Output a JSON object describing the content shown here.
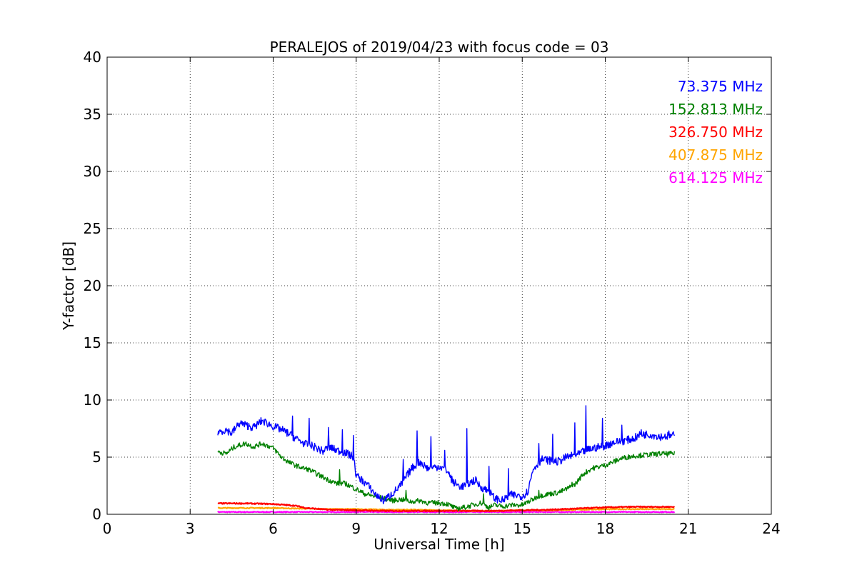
{
  "chart_data": {
    "type": "line",
    "title": "PERALEJOS of 2019/04/23 with focus code = 03",
    "xlabel": "Universal Time [h]",
    "ylabel": "Y-factor [dB]",
    "xlim": [
      0,
      24
    ],
    "ylim": [
      0,
      40
    ],
    "xticks": [
      0,
      3,
      6,
      9,
      12,
      15,
      18,
      21,
      24
    ],
    "yticks": [
      0,
      5,
      10,
      15,
      20,
      25,
      30,
      35,
      40
    ],
    "grid": true,
    "legend_position": "top-right",
    "series": [
      {
        "name": "73.375 MHz",
        "color": "#0000ff",
        "points": [
          [
            4.0,
            7.2
          ],
          [
            4.3,
            7.4
          ],
          [
            4.5,
            7.1
          ],
          [
            4.8,
            8.0
          ],
          [
            5.0,
            7.8
          ],
          [
            5.3,
            7.6
          ],
          [
            5.6,
            8.2
          ],
          [
            6.0,
            7.7
          ],
          [
            6.3,
            7.4
          ],
          [
            6.6,
            7.0
          ],
          [
            6.9,
            6.5
          ],
          [
            7.2,
            6.1
          ],
          [
            7.5,
            5.9
          ],
          [
            7.8,
            5.5
          ],
          [
            8.0,
            5.9
          ],
          [
            8.3,
            5.6
          ],
          [
            8.6,
            5.4
          ],
          [
            8.9,
            5.0
          ],
          [
            9.0,
            3.4
          ],
          [
            9.2,
            3.0
          ],
          [
            9.4,
            2.6
          ],
          [
            9.6,
            2.0
          ],
          [
            9.8,
            1.5
          ],
          [
            10.0,
            1.2
          ],
          [
            10.3,
            1.8
          ],
          [
            10.6,
            2.5
          ],
          [
            11.0,
            4.0
          ],
          [
            11.3,
            4.6
          ],
          [
            11.6,
            4.0
          ],
          [
            12.0,
            4.2
          ],
          [
            12.3,
            3.8
          ],
          [
            12.5,
            2.8
          ],
          [
            12.8,
            2.4
          ],
          [
            13.0,
            2.6
          ],
          [
            13.3,
            3.0
          ],
          [
            13.5,
            2.4
          ],
          [
            13.8,
            2.0
          ],
          [
            14.0,
            1.4
          ],
          [
            14.3,
            1.2
          ],
          [
            14.6,
            1.7
          ],
          [
            15.0,
            1.6
          ],
          [
            15.2,
            2.0
          ],
          [
            15.4,
            4.0
          ],
          [
            15.7,
            4.8
          ],
          [
            16.0,
            4.7
          ],
          [
            16.3,
            4.6
          ],
          [
            16.6,
            5.0
          ],
          [
            17.0,
            5.2
          ],
          [
            17.3,
            5.6
          ],
          [
            17.6,
            5.8
          ],
          [
            18.0,
            6.0
          ],
          [
            18.3,
            6.3
          ],
          [
            18.6,
            6.4
          ],
          [
            19.0,
            6.6
          ],
          [
            19.3,
            7.0
          ],
          [
            19.6,
            7.0
          ],
          [
            20.0,
            6.8
          ],
          [
            20.5,
            6.9
          ]
        ],
        "spikes": [
          [
            6.7,
            8.6
          ],
          [
            7.3,
            8.4
          ],
          [
            8.0,
            7.6
          ],
          [
            8.5,
            7.4
          ],
          [
            8.9,
            6.9
          ],
          [
            10.7,
            4.8
          ],
          [
            11.2,
            7.3
          ],
          [
            11.7,
            6.8
          ],
          [
            12.2,
            5.6
          ],
          [
            13.0,
            7.5
          ],
          [
            13.8,
            4.2
          ],
          [
            14.5,
            4.0
          ],
          [
            15.6,
            6.2
          ],
          [
            16.1,
            7.0
          ],
          [
            16.9,
            8.0
          ],
          [
            17.3,
            9.5
          ],
          [
            17.9,
            8.4
          ],
          [
            18.6,
            7.8
          ],
          [
            19.3,
            7.4
          ],
          [
            20.3,
            7.3
          ]
        ]
      },
      {
        "name": "152.813 MHz",
        "color": "#008000",
        "points": [
          [
            4.0,
            5.5
          ],
          [
            4.3,
            5.3
          ],
          [
            4.6,
            5.9
          ],
          [
            5.0,
            6.2
          ],
          [
            5.3,
            5.9
          ],
          [
            5.6,
            6.2
          ],
          [
            6.0,
            5.8
          ],
          [
            6.3,
            5.0
          ],
          [
            6.6,
            4.5
          ],
          [
            7.0,
            4.1
          ],
          [
            7.3,
            3.9
          ],
          [
            7.6,
            3.5
          ],
          [
            8.0,
            3.0
          ],
          [
            8.3,
            2.7
          ],
          [
            8.6,
            2.7
          ],
          [
            9.0,
            2.2
          ],
          [
            9.3,
            1.8
          ],
          [
            9.6,
            1.6
          ],
          [
            10.0,
            1.4
          ],
          [
            10.3,
            1.2
          ],
          [
            10.6,
            1.3
          ],
          [
            11.0,
            1.1
          ],
          [
            11.3,
            1.2
          ],
          [
            11.6,
            1.0
          ],
          [
            12.0,
            1.0
          ],
          [
            12.3,
            0.9
          ],
          [
            12.6,
            0.5
          ],
          [
            12.9,
            0.6
          ],
          [
            13.2,
            0.8
          ],
          [
            13.5,
            1.0
          ],
          [
            13.8,
            0.6
          ],
          [
            14.0,
            0.8
          ],
          [
            14.3,
            0.7
          ],
          [
            14.6,
            0.8
          ],
          [
            15.0,
            0.8
          ],
          [
            15.3,
            1.2
          ],
          [
            15.6,
            1.6
          ],
          [
            16.0,
            1.8
          ],
          [
            16.3,
            1.9
          ],
          [
            16.6,
            2.2
          ],
          [
            16.9,
            2.6
          ],
          [
            17.2,
            3.5
          ],
          [
            17.5,
            4.0
          ],
          [
            18.0,
            4.3
          ],
          [
            18.3,
            4.6
          ],
          [
            18.6,
            4.9
          ],
          [
            19.0,
            5.1
          ],
          [
            19.5,
            5.2
          ],
          [
            20.0,
            5.3
          ],
          [
            20.5,
            5.3
          ]
        ],
        "spikes": [
          [
            8.4,
            3.9
          ],
          [
            10.8,
            2.1
          ],
          [
            13.6,
            1.8
          ],
          [
            15.6,
            2.1
          ],
          [
            16.8,
            2.8
          ]
        ]
      },
      {
        "name": "326.750 MHz",
        "color": "#ff0000",
        "points": [
          [
            4.0,
            0.95
          ],
          [
            5.0,
            0.95
          ],
          [
            6.0,
            0.9
          ],
          [
            6.8,
            0.75
          ],
          [
            7.2,
            0.55
          ],
          [
            8.0,
            0.4
          ],
          [
            9.0,
            0.35
          ],
          [
            10.0,
            0.3
          ],
          [
            11.0,
            0.3
          ],
          [
            12.0,
            0.3
          ],
          [
            13.0,
            0.3
          ],
          [
            14.0,
            0.3
          ],
          [
            15.0,
            0.35
          ],
          [
            16.0,
            0.4
          ],
          [
            17.0,
            0.5
          ],
          [
            18.0,
            0.6
          ],
          [
            19.0,
            0.65
          ],
          [
            20.0,
            0.65
          ],
          [
            20.5,
            0.65
          ]
        ],
        "spikes": []
      },
      {
        "name": "407.875 MHz",
        "color": "#ffa500",
        "points": [
          [
            4.0,
            0.55
          ],
          [
            5.0,
            0.55
          ],
          [
            6.0,
            0.55
          ],
          [
            7.0,
            0.5
          ],
          [
            8.0,
            0.45
          ],
          [
            9.0,
            0.45
          ],
          [
            10.0,
            0.4
          ],
          [
            11.0,
            0.4
          ],
          [
            12.0,
            0.35
          ],
          [
            13.0,
            0.3
          ],
          [
            14.0,
            0.3
          ],
          [
            15.0,
            0.35
          ],
          [
            16.0,
            0.35
          ],
          [
            17.0,
            0.4
          ],
          [
            18.0,
            0.45
          ],
          [
            19.0,
            0.45
          ],
          [
            20.0,
            0.45
          ],
          [
            20.5,
            0.45
          ]
        ],
        "spikes": []
      },
      {
        "name": "614.125 MHz",
        "color": "#ff00ff",
        "points": [
          [
            4.0,
            0.2
          ],
          [
            6.0,
            0.2
          ],
          [
            8.0,
            0.2
          ],
          [
            10.0,
            0.2
          ],
          [
            12.0,
            0.2
          ],
          [
            14.0,
            0.2
          ],
          [
            16.0,
            0.2
          ],
          [
            18.0,
            0.2
          ],
          [
            20.0,
            0.2
          ],
          [
            20.5,
            0.2
          ]
        ],
        "spikes": []
      }
    ]
  }
}
